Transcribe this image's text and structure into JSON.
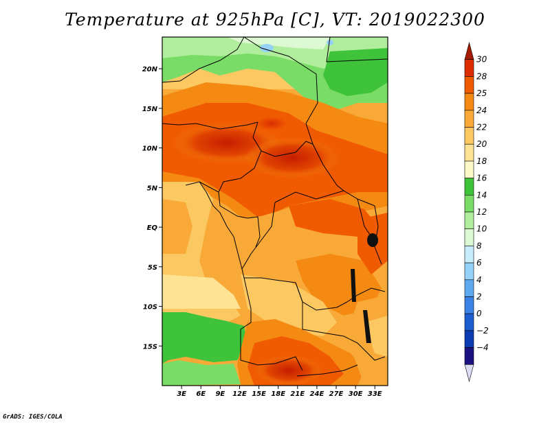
{
  "title": "Temperature at 925hPa [C], VT: 2019022300",
  "credit": "GrADS: IGES/COLA",
  "map": {
    "lon_range": [
      0,
      35
    ],
    "lat_range": [
      -20,
      24
    ],
    "lat_ticks": [
      {
        "value": 20,
        "label": "20N"
      },
      {
        "value": 15,
        "label": "15N"
      },
      {
        "value": 10,
        "label": "10N"
      },
      {
        "value": 5,
        "label": "5N"
      },
      {
        "value": 0,
        "label": "EQ"
      },
      {
        "value": -5,
        "label": "5S"
      },
      {
        "value": -10,
        "label": "10S"
      },
      {
        "value": -15,
        "label": "15S"
      }
    ],
    "lon_ticks": [
      {
        "value": 3,
        "label": "3E"
      },
      {
        "value": 6,
        "label": "6E"
      },
      {
        "value": 9,
        "label": "9E"
      },
      {
        "value": 12,
        "label": "12E"
      },
      {
        "value": 15,
        "label": "15E"
      },
      {
        "value": 18,
        "label": "18E"
      },
      {
        "value": 21,
        "label": "21E"
      },
      {
        "value": 24,
        "label": "24E"
      },
      {
        "value": 27,
        "label": "27E"
      },
      {
        "value": 30,
        "label": "30E"
      },
      {
        "value": 33,
        "label": "33E"
      }
    ]
  },
  "colorbar": {
    "levels": [
      "30",
      "28",
      "25",
      "24",
      "22",
      "20",
      "18",
      "16",
      "14",
      "12",
      "10",
      "8",
      "6",
      "4",
      "2",
      "0",
      "−2",
      "−4"
    ],
    "colors": [
      "#a51b00",
      "#db2d00",
      "#f05a00",
      "#f58a13",
      "#f8a938",
      "#fbc862",
      "#fde393",
      "#fdf8c7",
      "#3fc33a",
      "#79dc66",
      "#b0ee9d",
      "#dcf9d3",
      "#c9eefb",
      "#96d2f7",
      "#5fa9ef",
      "#3a82e4",
      "#1c5ed0",
      "#0c3bb2",
      "#1b1180",
      "#dcdcf4"
    ]
  }
}
